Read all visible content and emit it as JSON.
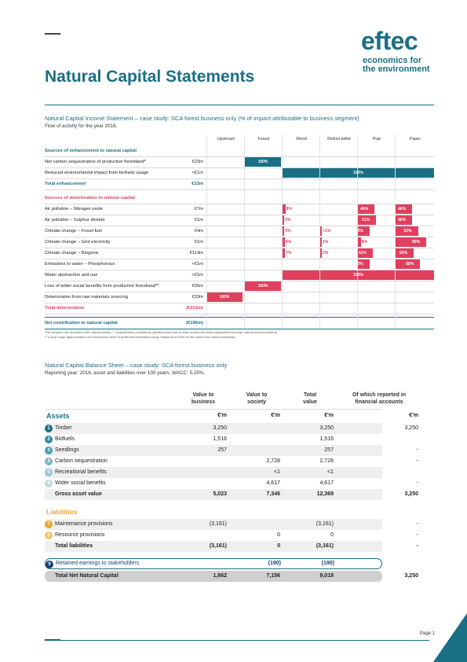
{
  "logo": {
    "name": "eftec",
    "sub1": "economics for",
    "sub2_a": "the ",
    "sub2_b": "environment"
  },
  "title": "Natural Capital Statements",
  "income": {
    "title": "Natural Capital Income Statement – case study: SCA forest business only (% of impact attributable to business segment)",
    "subtitle": "Flow of activity for the year 2016.",
    "columns": [
      "Upstream",
      "Forest",
      "Wood",
      "Biofuel pellet",
      "Pulp",
      "Paper"
    ],
    "enh_header": "Sources of enhancement to natural capital",
    "enh_rows": [
      {
        "label": "Net carbon sequestration of productive forestland*",
        "value": "€23m",
        "bar": "100%"
      },
      {
        "label": "Reduced environmental impact from biofuels usage",
        "value": "<€1m",
        "bar": "100%"
      }
    ],
    "enh_total": {
      "label": "Total enhancement",
      "value": "€23m"
    },
    "det_header": "Sources of deterioration to natural capital",
    "det_rows": [
      {
        "label": "Air pollution – Nitrogen oxide",
        "value": "€7m",
        "wood": "8%",
        "pulp": "46%",
        "paper": "46%"
      },
      {
        "label": "Air pollution – Sulphur dioxide",
        "value": "€1m",
        "wood": "3%",
        "pulp": "51%",
        "paper": "46%"
      },
      {
        "label": "Climate change – Fossil fuel",
        "value": "€4m",
        "wood": "5%",
        "pellet": "<1%",
        "pulp": "32%",
        "paper": "62%"
      },
      {
        "label": "Climate change – Grid electricity",
        "value": "€1m",
        "wood": "6%",
        "pellet": "1%",
        "pulp": "8%",
        "paper": "85%"
      },
      {
        "label": "Climate change – Biogenic",
        "value": "€114m",
        "wood": "7%",
        "pellet": "2%",
        "pulp": "41%",
        "paper": "50%"
      },
      {
        "label": "Emissions to water – Phosphorous",
        "value": "<€1m",
        "pulp": "32%",
        "paper": "68%"
      },
      {
        "label": "Water abstraction and use",
        "value": "<€1m",
        "bar": "100%"
      },
      {
        "label": "Loss of wider social benefits from productive forestland**",
        "value": "€55m",
        "bar": "100%"
      },
      {
        "label": "Deterioration from raw materials sourcing",
        "value": "€33m",
        "bar": "100%"
      }
    ],
    "det_total": {
      "label": "Total deterioration",
      "value": "(€213m)"
    },
    "net": {
      "label": "Net contribution to natural capital",
      "value": "(€190m)"
    },
    "note1": "The numbers are rounded to the nearest million. *: sequestration provided by planted forest (net of what would have been sequestered through natural forest formation)",
    "note2": "** a very rough approximation of conservation value of productive forestland using Chiabai et al 2009 as the value from natural forestland."
  },
  "balance": {
    "title": "Natural Capital Balance Sheet – case study: SCA forest business only",
    "subtitle": "Reporting year: 2016, asset and liabilities over 100 years. WACC: 5.25%.",
    "headers": [
      {
        "l1": "Value to",
        "l2": "business"
      },
      {
        "l1": "Value to",
        "l2": "society"
      },
      {
        "l1": "Total",
        "l2": "value"
      },
      {
        "l1": "Of which reported in",
        "l2": "financial accounts"
      }
    ],
    "assets_label": "Assets",
    "unit": "€'m",
    "assets": [
      {
        "n": "1",
        "label": "Timber",
        "b": "3,250",
        "s": "",
        "t": "3,250",
        "f": "3,250",
        "color": "#1a6f84"
      },
      {
        "n": "2",
        "label": "Biofuels",
        "b": "1,516",
        "s": "",
        "t": "1,516",
        "f": "",
        "color": "#2f8aa0"
      },
      {
        "n": "3",
        "label": "Seedlings",
        "b": "257",
        "s": "",
        "t": "257",
        "f": "-",
        "color": "#4a9db1"
      },
      {
        "n": "4",
        "label": "Carbon sequestration",
        "b": "",
        "s": "2,728",
        "t": "2,728",
        "f": "-",
        "color": "#7ab4c4"
      },
      {
        "n": "5",
        "label": "Recreational benefits",
        "b": "",
        "s": "<1",
        "t": "<1",
        "f": "",
        "color": "#9cc6d2"
      },
      {
        "n": "6",
        "label": "Wider social benefits",
        "b": "",
        "s": "4,617",
        "t": "4,617",
        "f": "-",
        "color": "#bcd8e0"
      }
    ],
    "gross": {
      "label": "Gross asset value",
      "b": "5,023",
      "s": "7,346",
      "t": "12,369",
      "f": "3,250"
    },
    "liab_label": "Liabilities",
    "liabilities": [
      {
        "n": "7",
        "label": "Maintenance provisions",
        "b": "(3,161)",
        "s": "",
        "t": "(3,161)",
        "f": "-",
        "color": "#e8a92a"
      },
      {
        "n": "8",
        "label": "Resource provisions",
        "b": "",
        "s": "0",
        "t": "0",
        "f": "-",
        "color": "#f0c466"
      }
    ],
    "total_liab": {
      "label": "Total liabilities",
      "b": "(3,161)",
      "s": "0",
      "t": "(3,161)",
      "f": "-"
    },
    "retained": {
      "n": "9",
      "label": "Retained earnings to stakeholders",
      "b": "",
      "s": "(190)",
      "t": "(190)",
      "f": ""
    },
    "net": {
      "label": "Total Net Natural Capital",
      "b": "1,862",
      "s": "7,156",
      "t": "9,018",
      "f": "3,250"
    }
  },
  "footer": {
    "page": "Page 1"
  }
}
